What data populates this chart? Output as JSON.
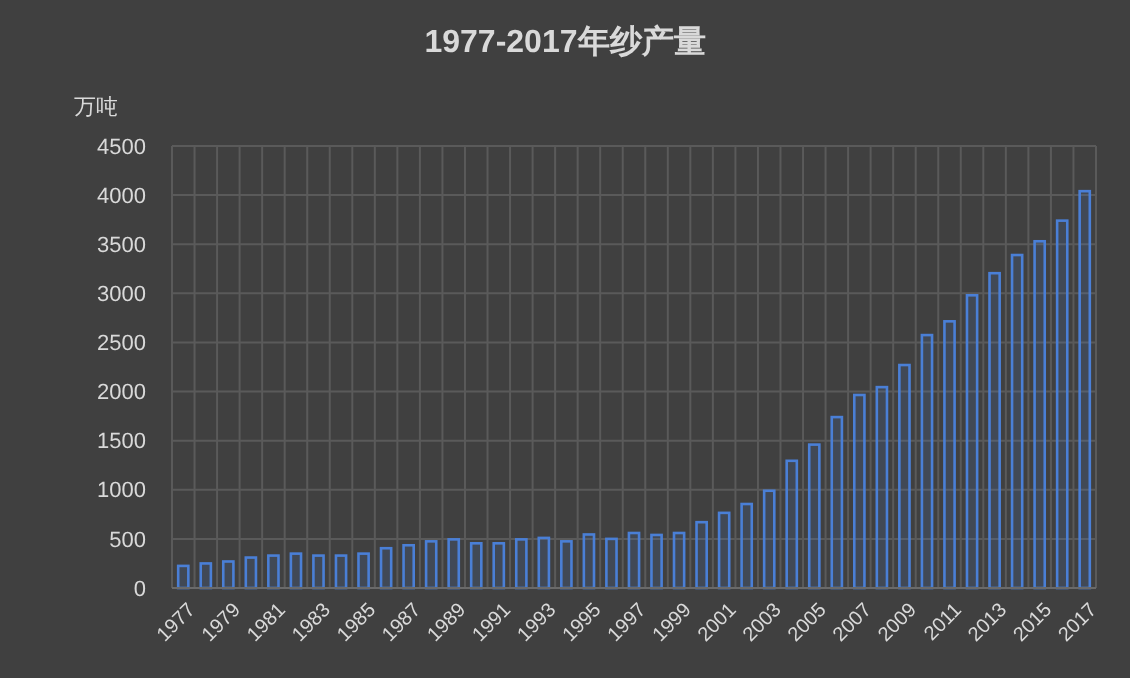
{
  "chart_data": {
    "type": "bar",
    "title": "1977-2017年纱产量",
    "ylabel": "万吨",
    "categories": [
      "1977",
      null,
      "1979",
      null,
      "1981",
      null,
      "1983",
      null,
      "1985",
      null,
      "1987",
      null,
      "1989",
      null,
      "1991",
      null,
      "1993",
      null,
      "1995",
      null,
      "1997",
      null,
      "1999",
      null,
      "2001",
      null,
      "2003",
      null,
      "2005",
      null,
      "2007",
      null,
      "2009",
      null,
      "2011",
      null,
      "2013",
      null,
      "2015",
      null,
      "2017"
    ],
    "values": [
      225,
      250,
      270,
      310,
      330,
      350,
      330,
      330,
      350,
      405,
      435,
      475,
      495,
      455,
      455,
      495,
      510,
      475,
      545,
      500,
      560,
      540,
      560,
      670,
      765,
      855,
      990,
      1295,
      1460,
      1740,
      1965,
      2045,
      2270,
      2575,
      2715,
      2980,
      3205,
      3390,
      3530,
      3740,
      4040
    ],
    "color": "#4a7fd6",
    "ylim": [
      0,
      4500
    ],
    "yticks": [
      0,
      500,
      1000,
      1500,
      2000,
      2500,
      3000,
      3500,
      4000,
      4500
    ],
    "grid": true
  }
}
